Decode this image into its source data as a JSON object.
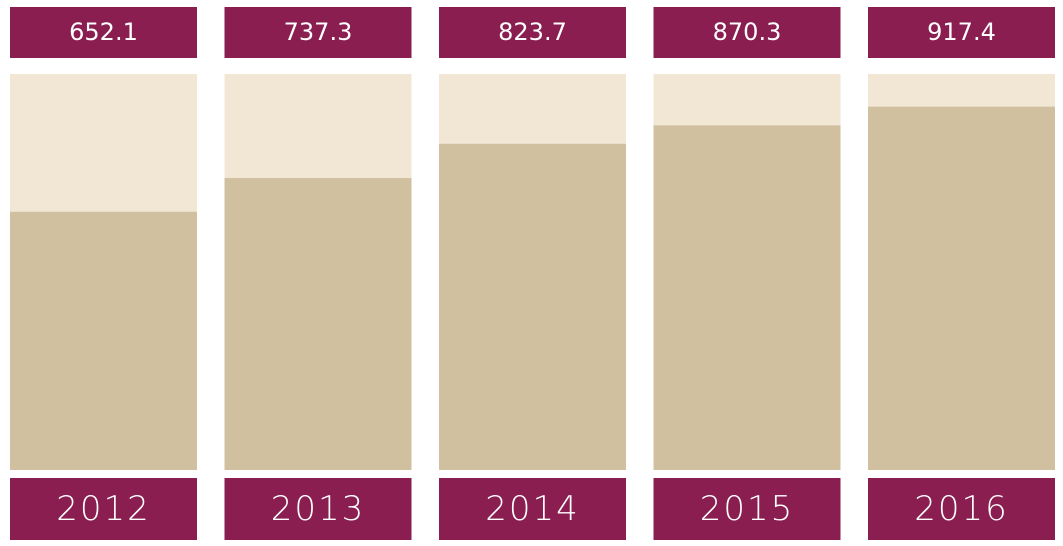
{
  "chart_data": {
    "type": "bar",
    "categories": [
      "2012",
      "2013",
      "2014",
      "2015",
      "2016"
    ],
    "values": [
      652.1,
      737.3,
      823.7,
      870.3,
      917.4
    ],
    "color": "#d1c09f",
    "track_color": "#f2e6d5",
    "label_color": "#8a1e50",
    "ylim": [
      0,
      1000
    ]
  }
}
